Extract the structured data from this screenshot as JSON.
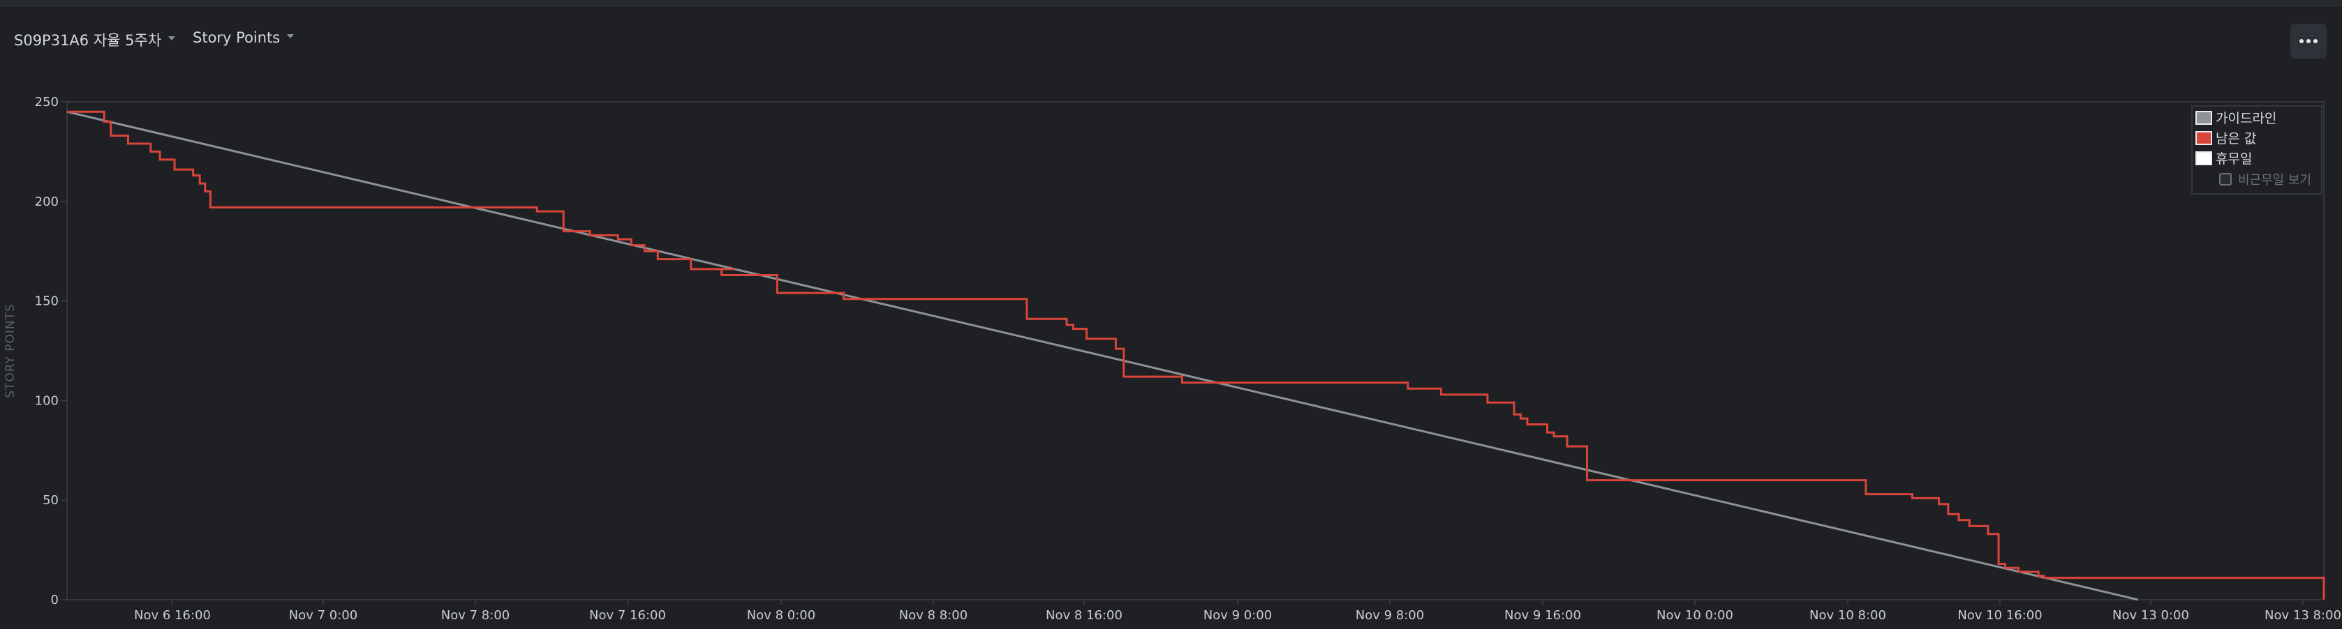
{
  "toolbar": {
    "sprint_select": "S09P31A6 자율 5주차",
    "metric_select": "Story Points",
    "more_icon": "more-horizontal-icon"
  },
  "colors": {
    "background": "#1e2024",
    "guideline": "#8f9398",
    "remaining": "#d9453a",
    "axis": "#3a3e44"
  },
  "legend": {
    "guideline": "가이드라인",
    "remaining": "남은 값",
    "holiday": "휴무일",
    "non_working": "비근무일 보기"
  },
  "chart_data": {
    "type": "line",
    "title": "",
    "xlabel": "",
    "ylabel": "STORY POINTS",
    "ylim": [
      0,
      250
    ],
    "yticks": [
      0,
      50,
      100,
      150,
      200,
      250
    ],
    "xticks": [
      "Nov 6 16:00",
      "Nov 7 0:00",
      "Nov 7 8:00",
      "Nov 7 16:00",
      "Nov 8 0:00",
      "Nov 8 8:00",
      "Nov 8 16:00",
      "Nov 9 0:00",
      "Nov 9 8:00",
      "Nov 9 16:00",
      "Nov 10 0:00",
      "Nov 10 8:00",
      "Nov 10 16:00",
      "Nov 13 0:00",
      "Nov 13 8:00"
    ],
    "x_unit": "hours after Nov 6 09:00",
    "xlim": [
      0,
      170
    ],
    "legend_position": "top-right",
    "grid": false,
    "series": [
      {
        "name": "가이드라인",
        "color": "#8f9398",
        "points": [
          [
            0,
            245
          ],
          [
            156,
            0
          ]
        ]
      },
      {
        "name": "남은 값",
        "color": "#d9453a",
        "step": true,
        "points": [
          [
            0,
            245
          ],
          [
            2.8,
            240
          ],
          [
            3.3,
            233
          ],
          [
            4.6,
            229
          ],
          [
            6.3,
            225
          ],
          [
            7.0,
            221
          ],
          [
            8.1,
            216
          ],
          [
            9.5,
            213
          ],
          [
            10.0,
            209
          ],
          [
            10.4,
            205
          ],
          [
            10.8,
            197
          ],
          [
            35.4,
            195
          ],
          [
            37.4,
            185
          ],
          [
            39.4,
            183
          ],
          [
            41.5,
            181
          ],
          [
            42.5,
            178
          ],
          [
            43.5,
            175
          ],
          [
            44.5,
            171
          ],
          [
            45.0,
            171
          ],
          [
            47.0,
            166
          ],
          [
            50.0,
            166
          ],
          [
            50.3,
            166
          ],
          [
            49.3,
            163
          ],
          [
            53.5,
            163
          ],
          [
            53.5,
            154
          ],
          [
            58.5,
            154
          ],
          [
            58.5,
            151
          ],
          [
            72.3,
            151
          ],
          [
            72.3,
            141
          ],
          [
            75.3,
            141
          ],
          [
            75.3,
            138
          ],
          [
            75.8,
            136
          ],
          [
            76.8,
            136
          ],
          [
            76.8,
            131
          ],
          [
            79.0,
            131
          ],
          [
            79.0,
            126
          ],
          [
            79.6,
            118
          ],
          [
            79.6,
            112
          ],
          [
            84.0,
            112
          ],
          [
            84.0,
            109
          ],
          [
            101.0,
            109
          ],
          [
            101.0,
            106
          ],
          [
            103.5,
            106
          ],
          [
            103.5,
            103
          ],
          [
            107.0,
            103
          ],
          [
            107.0,
            99
          ],
          [
            109.0,
            99
          ],
          [
            109.0,
            93
          ],
          [
            109.5,
            91
          ],
          [
            110.0,
            88
          ],
          [
            111.5,
            88
          ],
          [
            111.5,
            84
          ],
          [
            112.0,
            82
          ],
          [
            113.0,
            82
          ],
          [
            113.0,
            77
          ],
          [
            114.5,
            77
          ],
          [
            114.5,
            60
          ],
          [
            135.5,
            60
          ],
          [
            135.5,
            53
          ],
          [
            139.0,
            53
          ],
          [
            139.0,
            51
          ],
          [
            141.0,
            51
          ],
          [
            141.0,
            48
          ],
          [
            141.7,
            48
          ],
          [
            141.7,
            43
          ],
          [
            142.5,
            43
          ],
          [
            142.5,
            40
          ],
          [
            143.3,
            40
          ],
          [
            143.3,
            37
          ],
          [
            144.7,
            37
          ],
          [
            144.7,
            33
          ],
          [
            145.5,
            33
          ],
          [
            145.5,
            18
          ],
          [
            146.0,
            16
          ],
          [
            147.0,
            14
          ],
          [
            148.5,
            12
          ],
          [
            148.9,
            11
          ],
          [
            170.0,
            11
          ],
          [
            170.0,
            0
          ]
        ]
      }
    ]
  }
}
